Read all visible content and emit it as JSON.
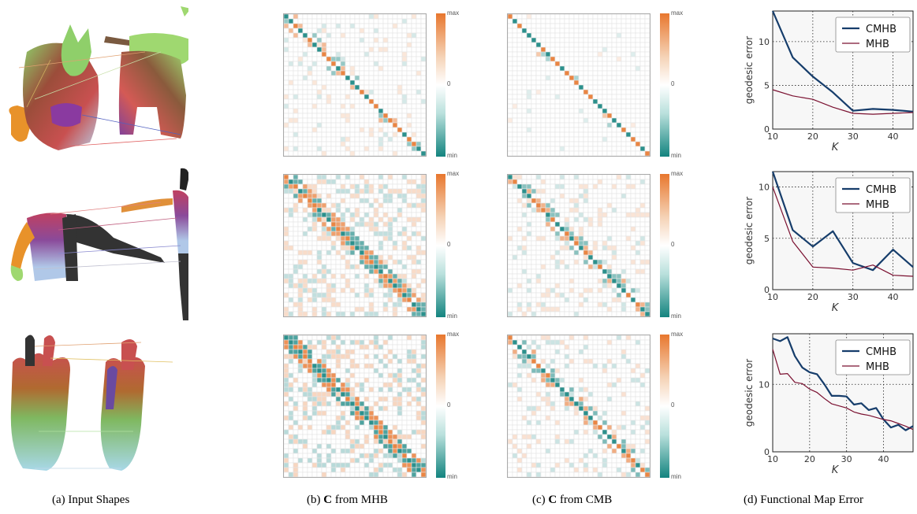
{
  "captions": {
    "a": "(a) Input Shapes",
    "b_prefix": "(b) ",
    "b_bold": "C",
    "b_suffix": " from MHB",
    "c_prefix": "(c) ",
    "c_bold": "C",
    "c_suffix": " from CMB",
    "d": "(d) Functional Map Error"
  },
  "colorbar": {
    "max": "max",
    "zero": "0",
    "min": "min"
  },
  "colors": {
    "orange": "#e8772e",
    "teal": "#13847f",
    "cmhb": "#163d6b",
    "mhb": "#7a1030"
  },
  "chart_data": [
    {
      "type": "line",
      "xlabel": "K",
      "ylabel": "geodesic error",
      "xlim": [
        10,
        45
      ],
      "ylim": [
        0,
        13.5
      ],
      "xticks": [
        "10",
        "20",
        "30",
        "40"
      ],
      "yticks": [
        "0",
        "5",
        "10"
      ],
      "legend": "top-right",
      "grid": true,
      "series": [
        {
          "name": "CMHB",
          "x": [
            10,
            15,
            20,
            25,
            30,
            35,
            40,
            45
          ],
          "values": [
            13.5,
            8.2,
            6.0,
            4.2,
            2.1,
            2.3,
            2.2,
            2.0
          ]
        },
        {
          "name": "MHB",
          "x": [
            10,
            15,
            20,
            25,
            30,
            35,
            40,
            45
          ],
          "values": [
            4.5,
            3.8,
            3.4,
            2.5,
            1.8,
            1.7,
            1.8,
            1.9
          ]
        }
      ]
    },
    {
      "type": "line",
      "xlabel": "K",
      "ylabel": "geodesic error",
      "xlim": [
        10,
        45
      ],
      "ylim": [
        0,
        11.5
      ],
      "xticks": [
        "10",
        "20",
        "30",
        "40"
      ],
      "yticks": [
        "0",
        "5",
        "10"
      ],
      "legend": "top-right",
      "grid": true,
      "series": [
        {
          "name": "CMHB",
          "x": [
            10,
            15,
            20,
            25,
            30,
            35,
            40,
            45
          ],
          "values": [
            11.5,
            5.8,
            4.2,
            5.7,
            2.6,
            1.9,
            3.9,
            2.2
          ]
        },
        {
          "name": "MHB",
          "x": [
            10,
            15,
            20,
            25,
            30,
            35,
            40,
            45
          ],
          "values": [
            10.0,
            4.7,
            2.2,
            2.1,
            1.9,
            2.4,
            1.4,
            1.3
          ]
        }
      ]
    },
    {
      "type": "line",
      "xlabel": "K",
      "ylabel": "geodesic error",
      "xlim": [
        10,
        48
      ],
      "ylim": [
        0,
        17.5
      ],
      "xticks": [
        "10",
        "20",
        "30",
        "40"
      ],
      "yticks": [
        "0",
        "10"
      ],
      "legend": "top-right",
      "grid": true,
      "series": [
        {
          "name": "CMHB",
          "x": [
            10,
            12,
            14,
            16,
            18,
            20,
            22,
            24,
            26,
            28,
            30,
            32,
            34,
            36,
            38,
            40,
            42,
            44,
            46,
            48
          ],
          "values": [
            16.8,
            16.4,
            17.0,
            14.2,
            12.5,
            11.8,
            11.5,
            10.0,
            8.3,
            8.3,
            8.2,
            7.0,
            7.2,
            6.2,
            6.5,
            4.8,
            3.6,
            4.0,
            3.2,
            3.8
          ]
        },
        {
          "name": "MHB",
          "x": [
            10,
            12,
            14,
            16,
            18,
            20,
            22,
            24,
            26,
            28,
            30,
            32,
            34,
            36,
            38,
            40,
            42,
            44,
            46,
            48
          ],
          "values": [
            15.2,
            11.5,
            11.6,
            10.3,
            10.1,
            9.3,
            8.8,
            7.9,
            7.1,
            6.8,
            6.5,
            5.9,
            5.6,
            5.4,
            5.1,
            4.8,
            4.6,
            4.2,
            3.8,
            3.3
          ]
        }
      ]
    }
  ]
}
